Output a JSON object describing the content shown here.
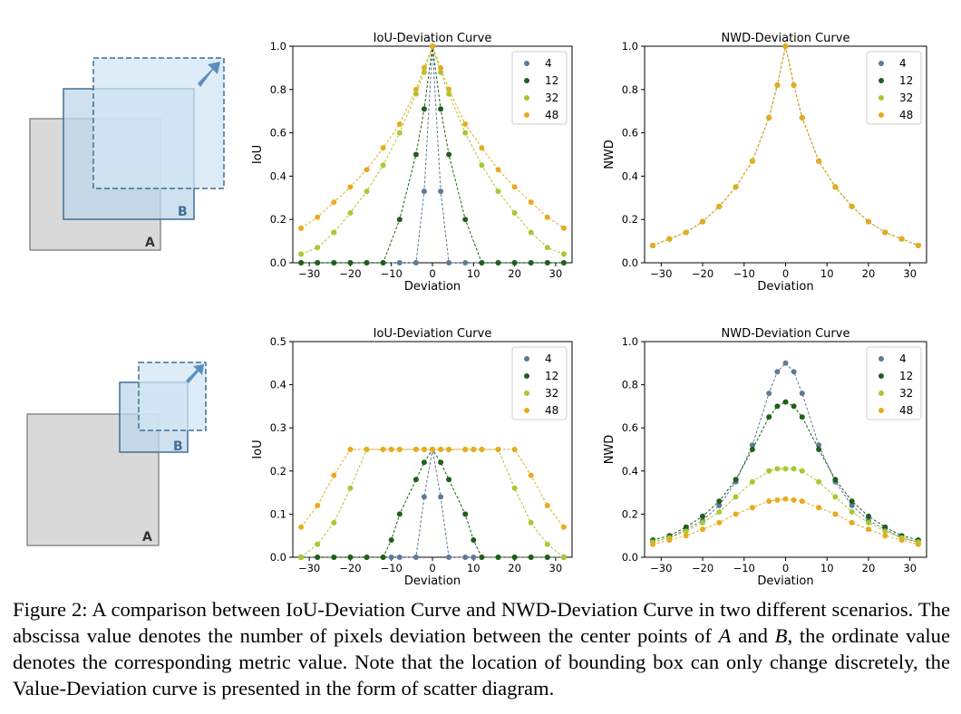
{
  "figure": {
    "caption": {
      "label": "Figure 2:",
      "part1": "A comparison between IoU-Deviation Curve and NWD-Deviation Curve in two different scenarios. The abscissa value denotes the number of pixels deviation between the center points of",
      "var_a": "A",
      "part2": "and",
      "var_b": "B",
      "part3": ", the ordinate value denotes the corresponding metric value. Note that the location of bounding box can only change discretely, the Value-Deviation curve is presented in the form of scatter diagram."
    },
    "diagrams": [
      {
        "label_a": "A",
        "label_b": "B"
      },
      {
        "label_a": "A",
        "label_b": "B"
      }
    ]
  },
  "chart_data": [
    {
      "type": "scatter",
      "title": "IoU-Deviation Curve",
      "xlabel": "Deviation",
      "ylabel": "IoU",
      "xlim": [
        -34,
        34
      ],
      "ylim": [
        0,
        1.0
      ],
      "xticks": [
        -30,
        -20,
        -10,
        0,
        10,
        20,
        30
      ],
      "yticks": [
        0.0,
        0.2,
        0.4,
        0.6,
        0.8,
        1.0
      ],
      "legend": "top-right",
      "x": [
        -32,
        -28,
        -24,
        -20,
        -16,
        -12,
        -8,
        -4,
        -2,
        0,
        2,
        4,
        8,
        12,
        16,
        20,
        24,
        28,
        32
      ],
      "series": [
        {
          "name": "4",
          "color": "#5d7a96",
          "values": [
            0,
            0,
            0,
            0,
            0,
            0,
            0,
            0,
            0.33,
            1.0,
            0.33,
            0,
            0,
            0,
            0,
            0,
            0,
            0,
            0
          ]
        },
        {
          "name": "12",
          "color": "#1f5f1a",
          "values": [
            0,
            0,
            0,
            0,
            0,
            0,
            0.2,
            0.5,
            0.71,
            1.0,
            0.71,
            0.5,
            0.2,
            0,
            0,
            0,
            0,
            0,
            0
          ]
        },
        {
          "name": "32",
          "color": "#a6c933",
          "values": [
            0.04,
            0.07,
            0.14,
            0.23,
            0.33,
            0.45,
            0.6,
            0.78,
            0.88,
            1.0,
            0.88,
            0.78,
            0.6,
            0.45,
            0.33,
            0.23,
            0.14,
            0.07,
            0.04
          ]
        },
        {
          "name": "48",
          "color": "#e7ab1f",
          "values": [
            0.16,
            0.21,
            0.28,
            0.35,
            0.43,
            0.53,
            0.64,
            0.8,
            0.9,
            1.0,
            0.9,
            0.8,
            0.64,
            0.53,
            0.43,
            0.35,
            0.28,
            0.21,
            0.16
          ]
        }
      ]
    },
    {
      "type": "scatter",
      "title": "NWD-Deviation Curve",
      "xlabel": "Deviation",
      "ylabel": "NWD",
      "xlim": [
        -34,
        34
      ],
      "ylim": [
        0,
        1.0
      ],
      "xticks": [
        -30,
        -20,
        -10,
        0,
        10,
        20,
        30
      ],
      "yticks": [
        0.0,
        0.2,
        0.4,
        0.6,
        0.8,
        1.0
      ],
      "legend": "top-right",
      "x": [
        -32,
        -28,
        -24,
        -20,
        -16,
        -12,
        -8,
        -4,
        -2,
        0,
        2,
        4,
        8,
        12,
        16,
        20,
        24,
        28,
        32
      ],
      "series": [
        {
          "name": "4",
          "color": "#5d7a96",
          "values": [
            0.08,
            0.11,
            0.14,
            0.19,
            0.26,
            0.35,
            0.47,
            0.67,
            0.82,
            1.0,
            0.82,
            0.67,
            0.47,
            0.35,
            0.26,
            0.19,
            0.14,
            0.11,
            0.08
          ]
        },
        {
          "name": "12",
          "color": "#1f5f1a",
          "values": [
            0.08,
            0.11,
            0.14,
            0.19,
            0.26,
            0.35,
            0.47,
            0.67,
            0.82,
            1.0,
            0.82,
            0.67,
            0.47,
            0.35,
            0.26,
            0.19,
            0.14,
            0.11,
            0.08
          ]
        },
        {
          "name": "32",
          "color": "#a6c933",
          "values": [
            0.08,
            0.11,
            0.14,
            0.19,
            0.26,
            0.35,
            0.47,
            0.67,
            0.82,
            1.0,
            0.82,
            0.67,
            0.47,
            0.35,
            0.26,
            0.19,
            0.14,
            0.11,
            0.08
          ]
        },
        {
          "name": "48",
          "color": "#e7ab1f",
          "values": [
            0.08,
            0.11,
            0.14,
            0.19,
            0.26,
            0.35,
            0.47,
            0.67,
            0.82,
            1.0,
            0.82,
            0.67,
            0.47,
            0.35,
            0.26,
            0.19,
            0.14,
            0.11,
            0.08
          ]
        }
      ]
    },
    {
      "type": "scatter",
      "title": "IoU-Deviation Curve",
      "xlabel": "Deviation",
      "ylabel": "IoU",
      "xlim": [
        -34,
        34
      ],
      "ylim": [
        0,
        0.5
      ],
      "xticks": [
        -30,
        -20,
        -10,
        0,
        10,
        20,
        30
      ],
      "yticks": [
        0.0,
        0.1,
        0.2,
        0.3,
        0.4,
        0.5
      ],
      "legend": "top-right",
      "x": [
        -32,
        -28,
        -24,
        -20,
        -16,
        -12,
        -10,
        -8,
        -4,
        -2,
        0,
        2,
        4,
        8,
        10,
        12,
        16,
        20,
        24,
        28,
        32
      ],
      "series": [
        {
          "name": "4",
          "color": "#5d7a96",
          "values": [
            0,
            0,
            0,
            0,
            0,
            0,
            0,
            0,
            0,
            0.14,
            0.25,
            0.14,
            0,
            0,
            0,
            0,
            0,
            0,
            0,
            0,
            0
          ]
        },
        {
          "name": "12",
          "color": "#1f5f1a",
          "values": [
            0,
            0,
            0,
            0,
            0,
            0,
            0.04,
            0.1,
            0.18,
            0.22,
            0.25,
            0.22,
            0.18,
            0.1,
            0.04,
            0,
            0,
            0,
            0,
            0,
            0
          ]
        },
        {
          "name": "32",
          "color": "#a6c933",
          "values": [
            0,
            0.03,
            0.08,
            0.16,
            0.25,
            0.25,
            0.25,
            0.25,
            0.25,
            0.25,
            0.25,
            0.25,
            0.25,
            0.25,
            0.25,
            0.25,
            0.25,
            0.16,
            0.08,
            0.03,
            0
          ]
        },
        {
          "name": "48",
          "color": "#e7ab1f",
          "values": [
            0.07,
            0.12,
            0.19,
            0.25,
            0.25,
            0.25,
            0.25,
            0.25,
            0.25,
            0.25,
            0.25,
            0.25,
            0.25,
            0.25,
            0.25,
            0.25,
            0.25,
            0.25,
            0.19,
            0.12,
            0.07
          ]
        }
      ]
    },
    {
      "type": "scatter",
      "title": "NWD-Deviation Curve",
      "xlabel": "Deviation",
      "ylabel": "NWD",
      "xlim": [
        -34,
        34
      ],
      "ylim": [
        0,
        1.0
      ],
      "xticks": [
        -30,
        -20,
        -10,
        0,
        10,
        20,
        30
      ],
      "yticks": [
        0.0,
        0.2,
        0.4,
        0.6,
        0.8,
        1.0
      ],
      "legend": "top-right",
      "x": [
        -32,
        -28,
        -24,
        -20,
        -16,
        -12,
        -8,
        -4,
        -2,
        0,
        2,
        4,
        8,
        12,
        16,
        20,
        24,
        28,
        32
      ],
      "series": [
        {
          "name": "4",
          "color": "#5d7a96",
          "values": [
            0.07,
            0.09,
            0.13,
            0.17,
            0.24,
            0.35,
            0.52,
            0.76,
            0.86,
            0.9,
            0.86,
            0.76,
            0.52,
            0.35,
            0.24,
            0.17,
            0.13,
            0.09,
            0.07
          ]
        },
        {
          "name": "12",
          "color": "#1f5f1a",
          "values": [
            0.08,
            0.1,
            0.14,
            0.19,
            0.26,
            0.36,
            0.5,
            0.65,
            0.7,
            0.72,
            0.7,
            0.65,
            0.5,
            0.36,
            0.26,
            0.19,
            0.14,
            0.1,
            0.08
          ]
        },
        {
          "name": "32",
          "color": "#a6c933",
          "values": [
            0.07,
            0.09,
            0.12,
            0.16,
            0.21,
            0.28,
            0.35,
            0.4,
            0.41,
            0.41,
            0.41,
            0.4,
            0.35,
            0.28,
            0.21,
            0.16,
            0.12,
            0.09,
            0.07
          ]
        },
        {
          "name": "48",
          "color": "#e7ab1f",
          "values": [
            0.06,
            0.08,
            0.1,
            0.13,
            0.16,
            0.2,
            0.23,
            0.26,
            0.265,
            0.27,
            0.265,
            0.26,
            0.23,
            0.2,
            0.16,
            0.13,
            0.1,
            0.08,
            0.06
          ]
        }
      ]
    }
  ]
}
